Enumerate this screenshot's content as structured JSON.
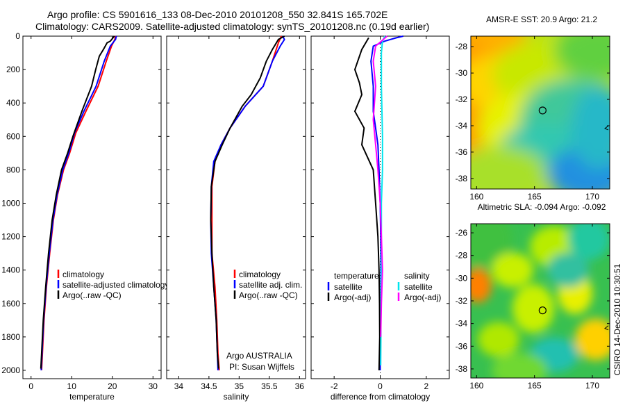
{
  "header": {
    "line1": "Argo profile: CS 5901616_133 08-Dec-2010 20101208_550 32.841S 165.702E",
    "line2": "Climatology: CARS2009. Satellite-adjusted climatology: synTS_20101208.nc (0.19d earlier)"
  },
  "colors": {
    "climatology": "#ff0000",
    "satellite": "#0000ff",
    "argo": "#000000",
    "salinity_sat": "#00e5ee",
    "salinity_argo": "#ff00ff"
  },
  "chart_data": [
    {
      "type": "line",
      "id": "temperature",
      "xlabel": "temperature",
      "xlim": [
        -2,
        32
      ],
      "ylim": [
        2050,
        0
      ],
      "y_reversed": true,
      "xticks": [
        0,
        10,
        20,
        30
      ],
      "yticks": [
        0,
        200,
        400,
        600,
        800,
        1000,
        1200,
        1400,
        1600,
        1800,
        2000
      ],
      "legend": [
        "climatology",
        "satellite-adjusted climatology",
        "Argo(..raw -QC)"
      ],
      "series": [
        {
          "name": "climatology",
          "color": "red",
          "points": [
            [
              20.8,
              0
            ],
            [
              20.6,
              20
            ],
            [
              19.8,
              60
            ],
            [
              18.5,
              150
            ],
            [
              16.5,
              300
            ],
            [
              13.5,
              450
            ],
            [
              11,
              580
            ],
            [
              9.5,
              700
            ],
            [
              8,
              800
            ],
            [
              6.5,
              950
            ],
            [
              5.5,
              1100
            ],
            [
              4.6,
              1300
            ],
            [
              3.8,
              1500
            ],
            [
              3.2,
              1700
            ],
            [
              2.8,
              1900
            ],
            [
              2.6,
              2000
            ]
          ]
        },
        {
          "name": "satellite-adjusted climatology",
          "color": "blue",
          "points": [
            [
              21,
              0
            ],
            [
              20.8,
              20
            ],
            [
              19.5,
              60
            ],
            [
              18,
              150
            ],
            [
              16,
              300
            ],
            [
              13,
              450
            ],
            [
              10.7,
              580
            ],
            [
              9.3,
              700
            ],
            [
              7.8,
              800
            ],
            [
              6.4,
              950
            ],
            [
              5.4,
              1100
            ],
            [
              4.5,
              1300
            ],
            [
              3.7,
              1500
            ],
            [
              3.1,
              1700
            ],
            [
              2.7,
              1900
            ],
            [
              2.5,
              2000
            ]
          ]
        },
        {
          "name": "Argo(..raw -QC)",
          "color": "black",
          "points": [
            [
              20.5,
              0
            ],
            [
              19.5,
              30
            ],
            [
              18.7,
              40
            ],
            [
              17.8,
              80
            ],
            [
              16.8,
              120
            ],
            [
              15.9,
              200
            ],
            [
              14.9,
              300
            ],
            [
              12.5,
              450
            ],
            [
              10.3,
              600
            ],
            [
              9,
              700
            ],
            [
              7.5,
              800
            ],
            [
              6.2,
              950
            ],
            [
              5.2,
              1100
            ],
            [
              4.3,
              1300
            ],
            [
              3.6,
              1500
            ],
            [
              3,
              1700
            ],
            [
              2.6,
              1900
            ],
            [
              2.4,
              1990
            ]
          ]
        }
      ]
    },
    {
      "type": "line",
      "id": "salinity",
      "xlabel": "salinity",
      "xlim": [
        33.8,
        36.1
      ],
      "ylim": [
        2050,
        0
      ],
      "y_reversed": true,
      "xticks": [
        34,
        34.5,
        35,
        35.5,
        36
      ],
      "legend": [
        "climatology",
        "satellite adj. clim.",
        "Argo(..raw -QC)"
      ],
      "annotation": [
        "Argo AUSTRALIA",
        "PI: Susan Wijffels"
      ],
      "series": [
        {
          "name": "climatology",
          "color": "red",
          "points": [
            [
              35.7,
              0
            ],
            [
              35.65,
              40
            ],
            [
              35.55,
              150
            ],
            [
              35.4,
              300
            ],
            [
              35.1,
              420
            ],
            [
              34.85,
              550
            ],
            [
              34.7,
              650
            ],
            [
              34.6,
              750
            ],
            [
              34.55,
              900
            ],
            [
              34.55,
              1100
            ],
            [
              34.55,
              1300
            ],
            [
              34.6,
              1500
            ],
            [
              34.63,
              1700
            ],
            [
              34.65,
              1900
            ],
            [
              34.67,
              2000
            ]
          ]
        },
        {
          "name": "satellite adj. clim.",
          "color": "blue",
          "points": [
            [
              35.72,
              0
            ],
            [
              35.75,
              20
            ],
            [
              35.68,
              60
            ],
            [
              35.55,
              150
            ],
            [
              35.4,
              300
            ],
            [
              35.1,
              420
            ],
            [
              34.85,
              550
            ],
            [
              34.7,
              650
            ],
            [
              34.58,
              750
            ],
            [
              34.54,
              900
            ],
            [
              34.53,
              1100
            ],
            [
              34.54,
              1300
            ],
            [
              34.58,
              1500
            ],
            [
              34.62,
              1700
            ],
            [
              34.64,
              1900
            ],
            [
              34.65,
              2000
            ]
          ]
        },
        {
          "name": "Argo(..raw -QC)",
          "color": "black",
          "points": [
            [
              35.75,
              0
            ],
            [
              35.65,
              20
            ],
            [
              35.55,
              80
            ],
            [
              35.45,
              150
            ],
            [
              35.35,
              250
            ],
            [
              35.2,
              350
            ],
            [
              35.05,
              420
            ],
            [
              34.85,
              550
            ],
            [
              34.72,
              650
            ],
            [
              34.6,
              750
            ],
            [
              34.54,
              900
            ],
            [
              34.53,
              1100
            ],
            [
              34.55,
              1300
            ],
            [
              34.58,
              1500
            ],
            [
              34.62,
              1700
            ],
            [
              34.64,
              1900
            ],
            [
              34.66,
              1990
            ]
          ]
        }
      ]
    },
    {
      "type": "line",
      "id": "difference",
      "xlabel": "difference from climatology",
      "xlim": [
        -3,
        3
      ],
      "ylim": [
        2050,
        0
      ],
      "y_reversed": true,
      "xticks": [
        -2,
        0,
        2
      ],
      "legend_temperature_title": "temperature",
      "legend_salinity_title": "salinity",
      "legend_temperature": [
        "satellite",
        "Argo(-adj)"
      ],
      "legend_salinity": [
        "satellite",
        "Argo(-adj)"
      ],
      "series": [
        {
          "name": "temperature satellite",
          "color": "blue",
          "points": [
            [
              1,
              0
            ],
            [
              0.7,
              10
            ],
            [
              0.2,
              30
            ],
            [
              -0.3,
              60
            ],
            [
              -0.4,
              150
            ],
            [
              -0.3,
              300
            ],
            [
              -0.3,
              450
            ],
            [
              -0.2,
              550
            ],
            [
              -0.1,
              650
            ],
            [
              -0.05,
              800
            ],
            [
              0,
              1000
            ],
            [
              0.02,
              1200
            ],
            [
              0.03,
              1400
            ],
            [
              0.02,
              1600
            ],
            [
              0,
              1800
            ],
            [
              0,
              2000
            ]
          ]
        },
        {
          "name": "temperature Argo(-adj)",
          "color": "black",
          "points": [
            [
              -0.5,
              10
            ],
            [
              -0.8,
              80
            ],
            [
              -1.1,
              200
            ],
            [
              -0.9,
              280
            ],
            [
              -0.8,
              350
            ],
            [
              -1.1,
              450
            ],
            [
              -0.7,
              550
            ],
            [
              -0.8,
              650
            ],
            [
              -0.3,
              800
            ],
            [
              -0.2,
              1000
            ],
            [
              -0.1,
              1200
            ],
            [
              -0.05,
              1400
            ],
            [
              -0.03,
              1600
            ],
            [
              -0.02,
              1800
            ],
            [
              -0.05,
              2000
            ]
          ]
        },
        {
          "name": "salinity satellite",
          "color": "cyan",
          "points": [
            [
              0.2,
              0
            ],
            [
              0.1,
              30
            ],
            [
              0.05,
              100
            ],
            [
              0.05,
              300
            ],
            [
              0.1,
              600
            ],
            [
              0.1,
              800
            ],
            [
              0.05,
              1000
            ],
            [
              0.05,
              1200
            ],
            [
              0.05,
              1400
            ],
            [
              0.03,
              1600
            ],
            [
              0.03,
              1800
            ],
            [
              0.02,
              1970
            ]
          ]
        },
        {
          "name": "salinity Argo(-adj)",
          "color": "magenta",
          "points": [
            [
              0.3,
              0
            ],
            [
              -0.2,
              60
            ],
            [
              -0.3,
              150
            ],
            [
              -0.2,
              300
            ],
            [
              -0.3,
              500
            ],
            [
              -0.2,
              650
            ],
            [
              -0.1,
              800
            ],
            [
              0,
              1000
            ],
            [
              0.05,
              1200
            ],
            [
              0.1,
              1400
            ],
            [
              0.05,
              1600
            ],
            [
              0.02,
              1800
            ]
          ]
        }
      ]
    },
    {
      "type": "heatmap",
      "id": "sst-map",
      "title": "AMSR-E SST: 20.9 Argo: 21.2",
      "xlim": [
        159.5,
        171.5
      ],
      "ylim": [
        -38.8,
        -27.2
      ],
      "xticks": [
        160,
        165,
        170
      ],
      "yticks": [
        -28,
        -30,
        -32,
        -34,
        -36,
        -38
      ],
      "argo_position": {
        "lon": 165.7,
        "lat": -32.84
      }
    },
    {
      "type": "heatmap",
      "id": "sla-map",
      "title": "Altimetric SLA: -0.094 Argo: -0.092",
      "xlim": [
        159.5,
        171.5
      ],
      "ylim": [
        -38.8,
        -25.2
      ],
      "xticks": [
        160,
        165,
        170
      ],
      "yticks": [
        -26,
        -28,
        -30,
        -32,
        -34,
        -36,
        -38
      ],
      "argo_position": {
        "lon": 165.7,
        "lat": -32.84
      }
    }
  ],
  "footer": {
    "credit": "CSIRO 14-Dec-2010 10:30:51"
  }
}
